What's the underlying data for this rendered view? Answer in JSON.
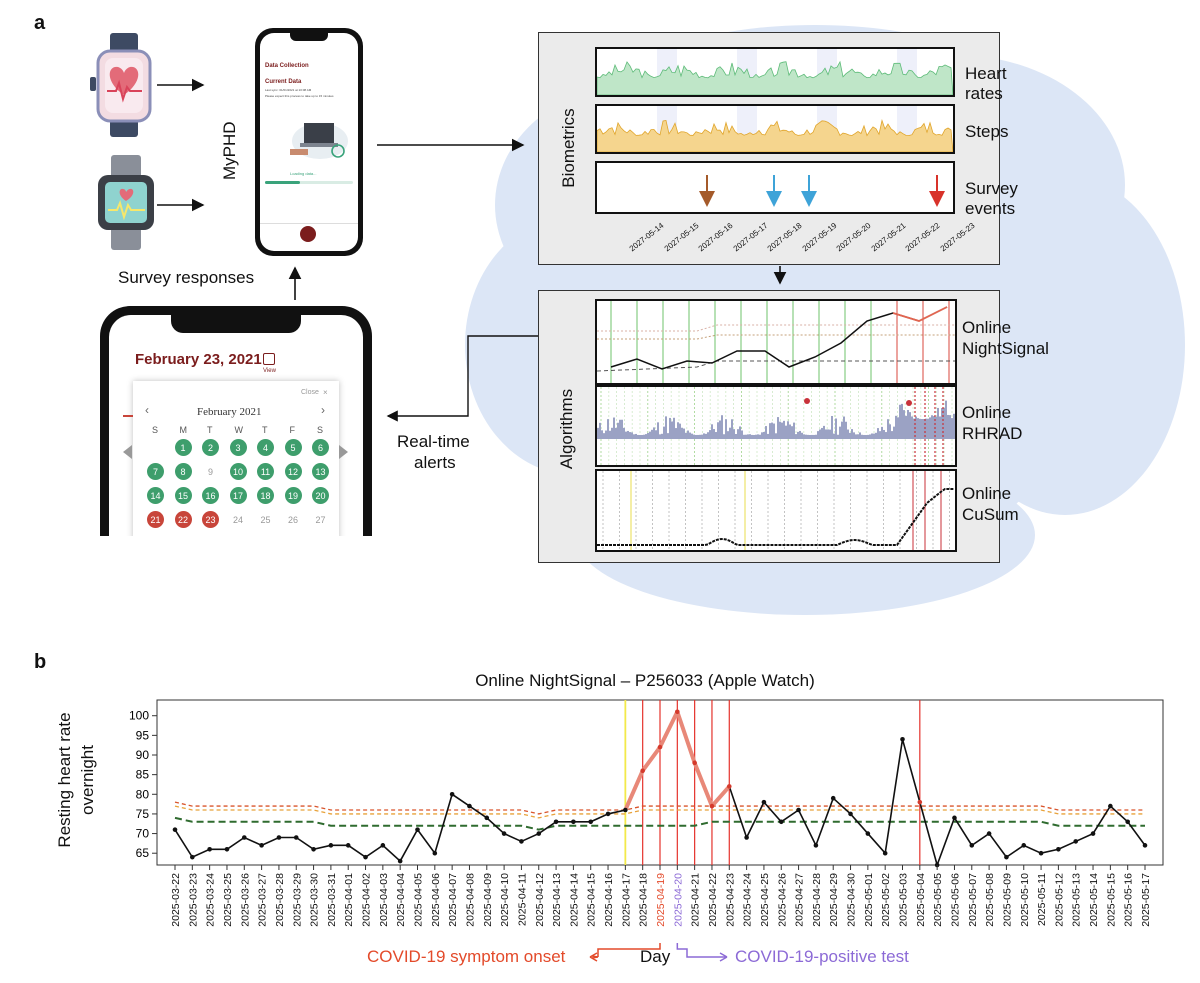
{
  "panel_a": {
    "letter": "a",
    "app_name": "MyPHD",
    "survey_responses": "Survey responses",
    "realtime_alerts": [
      "Real-time",
      "alerts"
    ],
    "phone_top": {
      "title": "Data Collection",
      "subtitle": "Current Data",
      "line1": "Last sync: 01/01/2021 at 10:08 AM",
      "line2": "Please expect this process to take up to 15 minutes",
      "loading": "Loading data..."
    },
    "calendar": {
      "date_title": "February 23, 2021",
      "view": "View",
      "close": "Close",
      "month": "February 2021",
      "weekdays": [
        "S",
        "M",
        "T",
        "W",
        "T",
        "F",
        "S"
      ],
      "rows": [
        [
          {
            "d": "",
            "c": ""
          },
          {
            "d": "1",
            "c": "g"
          },
          {
            "d": "2",
            "c": "g"
          },
          {
            "d": "3",
            "c": "g"
          },
          {
            "d": "4",
            "c": "g"
          },
          {
            "d": "5",
            "c": "g"
          },
          {
            "d": "6",
            "c": "g"
          }
        ],
        [
          {
            "d": "7",
            "c": "g"
          },
          {
            "d": "8",
            "c": "g"
          },
          {
            "d": "9",
            "c": ""
          },
          {
            "d": "10",
            "c": "g"
          },
          {
            "d": "11",
            "c": "g"
          },
          {
            "d": "12",
            "c": "g"
          },
          {
            "d": "13",
            "c": "g"
          }
        ],
        [
          {
            "d": "14",
            "c": "g"
          },
          {
            "d": "15",
            "c": "g"
          },
          {
            "d": "16",
            "c": "g"
          },
          {
            "d": "17",
            "c": "g"
          },
          {
            "d": "18",
            "c": "g"
          },
          {
            "d": "19",
            "c": "g"
          },
          {
            "d": "20",
            "c": "g"
          }
        ],
        [
          {
            "d": "21",
            "c": "r"
          },
          {
            "d": "22",
            "c": "r"
          },
          {
            "d": "23",
            "c": "r"
          },
          {
            "d": "24",
            "c": ""
          },
          {
            "d": "25",
            "c": ""
          },
          {
            "d": "26",
            "c": ""
          },
          {
            "d": "27",
            "c": ""
          }
        ]
      ],
      "green": "#3e9e6c",
      "red": "#c8453a"
    },
    "biometrics_box": {
      "label": "Biometrics",
      "rows": [
        "Heart rates",
        "Steps",
        "Survey events"
      ],
      "dates": [
        "2027-05-14",
        "2027-05-15",
        "2027-05-16",
        "2027-05-17",
        "2027-05-18",
        "2027-05-19",
        "2027-05-20",
        "2027-05-21",
        "2027-05-22",
        "2027-05-23"
      ]
    },
    "algorithms_box": {
      "label": "Algorithms",
      "rows": [
        [
          "Online",
          "NightSignal"
        ],
        [
          "Online",
          "RHRAD"
        ],
        [
          "Online",
          "CuSum"
        ]
      ]
    }
  },
  "panel_b": {
    "letter": "b",
    "chart_data": {
      "type": "line",
      "title": "Online NightSignal – P256033 (Apple Watch)",
      "ylabel": [
        "Resting heart rate",
        "overnight"
      ],
      "xlabel": "Day",
      "ylim": [
        62,
        104
      ],
      "yticks": [
        65,
        70,
        75,
        80,
        85,
        90,
        95,
        100
      ],
      "x": [
        "2025-03-22",
        "2025-03-23",
        "2025-03-24",
        "2025-03-25",
        "2025-03-26",
        "2025-03-27",
        "2025-03-28",
        "2025-03-29",
        "2025-03-30",
        "2025-03-31",
        "2025-04-01",
        "2025-04-02",
        "2025-04-03",
        "2025-04-04",
        "2025-04-05",
        "2025-04-06",
        "2025-04-07",
        "2025-04-08",
        "2025-04-09",
        "2025-04-10",
        "2025-04-11",
        "2025-04-12",
        "2025-04-13",
        "2025-04-14",
        "2025-04-15",
        "2025-04-16",
        "2025-04-17",
        "2025-04-18",
        "2025-04-19",
        "2025-04-20",
        "2025-04-21",
        "2025-04-22",
        "2025-04-23",
        "2025-04-24",
        "2025-04-25",
        "2025-04-26",
        "2025-04-27",
        "2025-04-28",
        "2025-04-29",
        "2025-04-30",
        "2025-05-01",
        "2025-05-02",
        "2025-05-03",
        "2025-05-04",
        "2025-05-05",
        "2025-05-06",
        "2025-05-07",
        "2025-05-08",
        "2025-05-09",
        "2025-05-10",
        "2025-05-11",
        "2025-05-12",
        "2025-05-13",
        "2025-05-14",
        "2025-05-15",
        "2025-05-16",
        "2025-05-17"
      ],
      "series": [
        {
          "values": [
            71,
            64,
            66,
            66,
            69,
            67,
            69,
            69,
            66,
            67,
            67,
            64,
            67,
            63,
            71,
            65,
            80,
            77,
            74,
            70,
            68,
            70,
            73,
            73,
            73,
            75,
            76,
            86,
            92,
            101,
            88,
            77,
            82,
            69,
            78,
            73,
            76,
            67,
            79,
            75,
            70,
            65,
            94,
            78,
            62,
            74,
            67,
            70,
            64,
            67,
            65,
            66,
            68,
            70,
            77,
            73,
            67
          ],
          "color": "#111111"
        },
        {
          "values": [
            78,
            77,
            77,
            77,
            77,
            77,
            77,
            77,
            77,
            76,
            76,
            76,
            76,
            76,
            76,
            76,
            76,
            76,
            76,
            76,
            76,
            75,
            76,
            76,
            76,
            76,
            76,
            77,
            77,
            77,
            77,
            77,
            77,
            77,
            77,
            77,
            77,
            77,
            77,
            77,
            77,
            77,
            77,
            77,
            77,
            77,
            77,
            77,
            77,
            77,
            77,
            76,
            76,
            76,
            76,
            76,
            76
          ],
          "color": "#d9552c"
        },
        {
          "values": [
            77,
            76,
            76,
            76,
            76,
            76,
            76,
            76,
            76,
            75,
            75,
            75,
            75,
            75,
            75,
            75,
            75,
            75,
            75,
            75,
            75,
            74,
            75,
            75,
            75,
            75,
            75,
            76,
            76,
            76,
            76,
            76,
            76,
            76,
            76,
            76,
            76,
            76,
            76,
            76,
            76,
            76,
            76,
            76,
            76,
            76,
            76,
            76,
            76,
            76,
            76,
            75,
            75,
            75,
            75,
            75,
            75
          ],
          "color": "#e8a23a"
        },
        {
          "values": [
            74,
            73,
            73,
            73,
            73,
            73,
            73,
            73,
            73,
            72,
            72,
            72,
            72,
            72,
            72,
            72,
            72,
            72,
            72,
            72,
            72,
            71,
            72,
            72,
            72,
            72,
            72,
            72,
            72,
            72,
            72,
            73,
            73,
            73,
            73,
            73,
            73,
            73,
            73,
            73,
            73,
            73,
            73,
            73,
            73,
            73,
            73,
            73,
            73,
            73,
            73,
            72,
            72,
            72,
            72,
            72,
            72
          ],
          "color": "#2f6b2f"
        }
      ],
      "alert_days": [
        "2025-04-18",
        "2025-04-19",
        "2025-04-20",
        "2025-04-21",
        "2025-04-22",
        "2025-04-23",
        "2025-05-04"
      ],
      "yellow_day": "2025-04-17",
      "highlight_segment": [
        "2025-04-17",
        "2025-04-23"
      ],
      "symptom_onset_day": "2025-04-19",
      "positive_test_day": "2025-04-20",
      "symptom_onset_label": "COVID-19 symptom onset",
      "positive_test_label": "COVID-19-positive test",
      "colors": {
        "alert": "#e5322b",
        "highlight": "#e88878",
        "yellow": "#f3e94a",
        "onset": "#e34a2a",
        "test": "#8c6ad6"
      }
    }
  }
}
